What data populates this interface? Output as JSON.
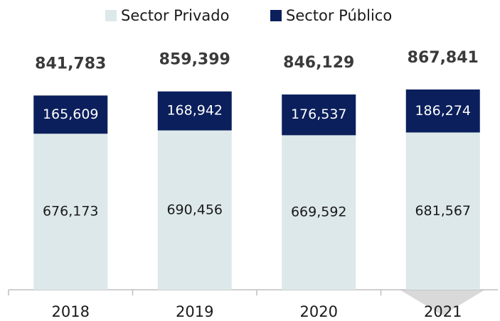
{
  "chart_data": {
    "type": "stacked_bar",
    "categories": [
      "2018",
      "2019",
      "2020",
      "2021"
    ],
    "series": [
      {
        "name": "Sector Privado",
        "color": "#dde8ea",
        "values": [
          676173,
          690456,
          669592,
          681567
        ],
        "value_labels": [
          "676,173",
          "690,456",
          "669,592",
          "681,567"
        ]
      },
      {
        "name": "Sector Público",
        "color": "#0b1f5c",
        "values": [
          165609,
          168942,
          176537,
          186274
        ],
        "value_labels": [
          "165,609",
          "168,942",
          "176,537",
          "186,274"
        ]
      }
    ],
    "totals": [
      841783,
      859399,
      846129,
      867841
    ],
    "total_labels": [
      "841,783",
      "859,399",
      "846,129",
      "867,841"
    ]
  }
}
